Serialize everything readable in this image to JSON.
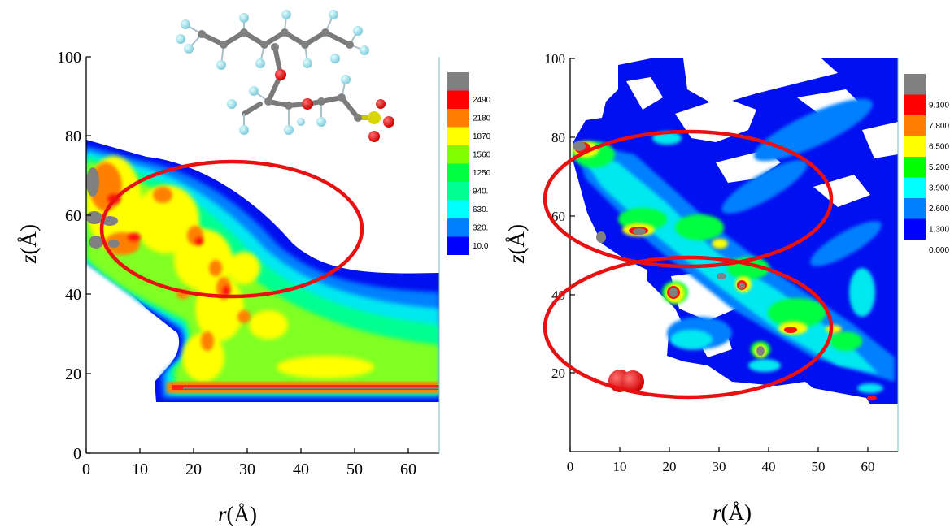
{
  "chart_data": [
    {
      "type": "heatmap",
      "panel": "left",
      "xlabel_var": "r",
      "xlabel_unit": "(Å)",
      "ylabel_var": "z",
      "ylabel_unit": "(Å)",
      "xlim": [
        0,
        66
      ],
      "ylim": [
        0,
        100
      ],
      "xticks": [
        "0",
        "10",
        "20",
        "30",
        "40",
        "50",
        "60"
      ],
      "yticks": [
        "0",
        "20",
        "40",
        "60",
        "80",
        "100"
      ],
      "colorbar_levels": [
        "2490",
        "2180",
        "1870",
        "1560",
        "1250",
        "940.",
        "630.",
        "320.",
        "10.0"
      ],
      "colorbar_colors": [
        "#808080",
        "#ff0000",
        "#ff8000",
        "#ffff00",
        "#80ff00",
        "#00ff40",
        "#00ff90",
        "#00ffff",
        "#0080ff",
        "#0000ff"
      ],
      "grid": false
    },
    {
      "type": "heatmap",
      "panel": "right",
      "xlabel_var": "r",
      "xlabel_unit": "(Å)",
      "ylabel_var": "z",
      "ylabel_unit": "(Å)",
      "xlim": [
        0,
        66
      ],
      "ylim": [
        0,
        100
      ],
      "xticks": [
        "0",
        "10",
        "20",
        "30",
        "40",
        "50",
        "60"
      ],
      "yticks": [
        "20",
        "40",
        "60",
        "80",
        "100"
      ],
      "colorbar_levels": [
        "9.100",
        "7.800",
        "6.500",
        "5.200",
        "3.900",
        "2.600",
        "1.300",
        "0.000"
      ],
      "colorbar_colors": [
        "#808080",
        "#ff0000",
        "#ff8000",
        "#ffff00",
        "#00ff00",
        "#00ffff",
        "#0080ff",
        "#0000ff"
      ],
      "grid": false
    }
  ],
  "annotations": {
    "highlight_color": "#e81010"
  }
}
